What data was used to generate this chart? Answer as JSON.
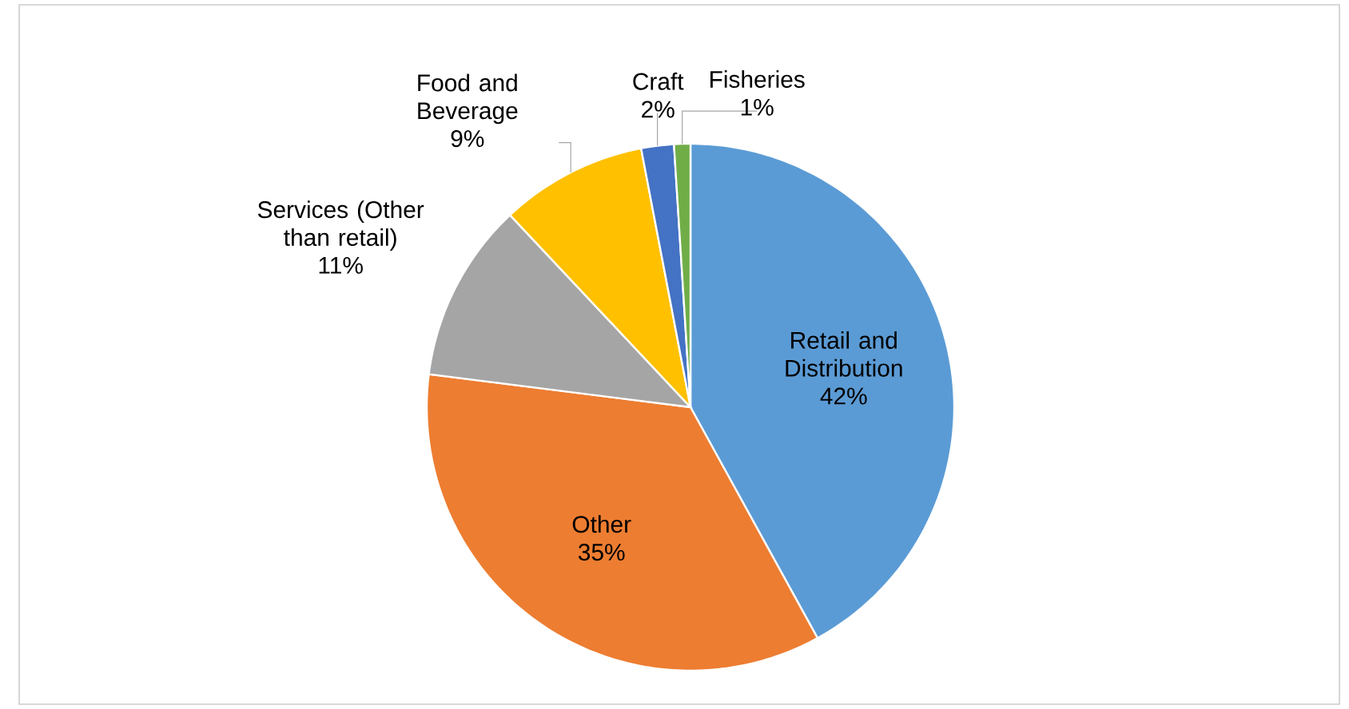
{
  "chart_data": {
    "type": "pie",
    "categories": [
      "Retail and Distribution",
      "Other",
      "Services (Other than retail)",
      "Food and Beverage",
      "Craft",
      "Fisheries"
    ],
    "values": [
      42,
      35,
      11,
      9,
      2,
      1
    ],
    "colors": [
      "#5b9bd5",
      "#ed7d31",
      "#a5a5a5",
      "#ffc000",
      "#4472c4",
      "#70ad47"
    ],
    "value_labels": [
      "42%",
      "35%",
      "11%",
      "9%",
      "2%",
      "1%"
    ]
  }
}
